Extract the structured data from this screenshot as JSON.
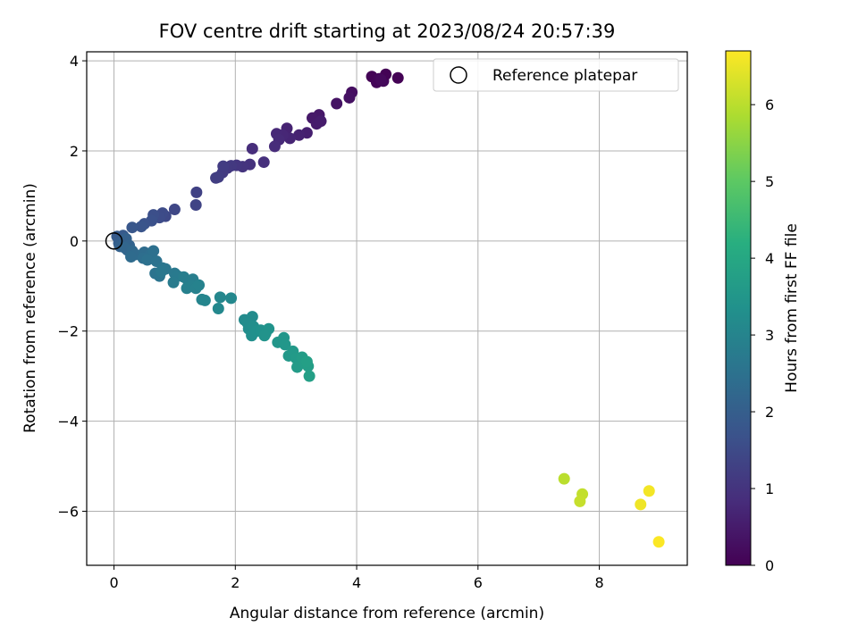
{
  "chart_data": {
    "type": "scatter",
    "title": "FOV centre drift starting at 2023/08/24 20:57:39",
    "xlabel": "Angular distance from reference (arcmin)",
    "ylabel": "Rotation from reference (arcmin)",
    "xlim": [
      -0.45,
      9.45
    ],
    "ylim": [
      -7.2,
      4.2
    ],
    "x_ticks": [
      0,
      2,
      4,
      6,
      8
    ],
    "y_ticks": [
      -6,
      -4,
      -2,
      0,
      2,
      4
    ],
    "x_tick_labels": [
      "0",
      "2",
      "4",
      "6",
      "8"
    ],
    "y_tick_labels": [
      "−6",
      "−4",
      "−2",
      "0",
      "2",
      "4"
    ],
    "grid": true,
    "legend": {
      "placement": "top-right",
      "entries": [
        "Reference platepar"
      ]
    },
    "reference_point": {
      "x": 0,
      "y": 0,
      "label": "Reference platepar"
    },
    "colorbar": {
      "label": "Hours from first FF file",
      "range": [
        0,
        6.7
      ],
      "ticks": [
        0,
        1,
        2,
        3,
        4,
        5,
        6
      ],
      "tick_labels": [
        "0",
        "1",
        "2",
        "3",
        "4",
        "5",
        "6"
      ],
      "colormap": "viridis"
    },
    "points": [
      {
        "x": 4.25,
        "y": 3.65,
        "t": 0.05
      },
      {
        "x": 4.33,
        "y": 3.52,
        "t": 0.08
      },
      {
        "x": 4.37,
        "y": 3.6,
        "t": 0.1
      },
      {
        "x": 4.44,
        "y": 3.55,
        "t": 0.12
      },
      {
        "x": 4.48,
        "y": 3.7,
        "t": 0.03
      },
      {
        "x": 4.68,
        "y": 3.62,
        "t": 0.02
      },
      {
        "x": 4.4,
        "y": 3.58,
        "t": 0.15
      },
      {
        "x": 3.92,
        "y": 3.3,
        "t": 0.25
      },
      {
        "x": 3.88,
        "y": 3.18,
        "t": 0.3
      },
      {
        "x": 3.67,
        "y": 3.05,
        "t": 0.35
      },
      {
        "x": 3.38,
        "y": 2.8,
        "t": 0.42
      },
      {
        "x": 3.27,
        "y": 2.73,
        "t": 0.45
      },
      {
        "x": 3.34,
        "y": 2.6,
        "t": 0.5
      },
      {
        "x": 3.41,
        "y": 2.66,
        "t": 0.52
      },
      {
        "x": 3.18,
        "y": 2.4,
        "t": 0.58
      },
      {
        "x": 3.05,
        "y": 2.35,
        "t": 0.62
      },
      {
        "x": 2.85,
        "y": 2.5,
        "t": 0.65
      },
      {
        "x": 2.9,
        "y": 2.28,
        "t": 0.68
      },
      {
        "x": 2.78,
        "y": 2.35,
        "t": 0.72
      },
      {
        "x": 2.68,
        "y": 2.38,
        "t": 0.75
      },
      {
        "x": 2.72,
        "y": 2.25,
        "t": 0.78
      },
      {
        "x": 2.65,
        "y": 2.1,
        "t": 0.82
      },
      {
        "x": 2.28,
        "y": 2.05,
        "t": 0.85
      },
      {
        "x": 2.47,
        "y": 1.75,
        "t": 0.9
      },
      {
        "x": 2.24,
        "y": 1.7,
        "t": 0.95
      },
      {
        "x": 2.12,
        "y": 1.65,
        "t": 1.0
      },
      {
        "x": 2.02,
        "y": 1.68,
        "t": 1.05
      },
      {
        "x": 1.93,
        "y": 1.67,
        "t": 1.1
      },
      {
        "x": 1.87,
        "y": 1.62,
        "t": 1.12
      },
      {
        "x": 1.79,
        "y": 1.52,
        "t": 1.15
      },
      {
        "x": 1.8,
        "y": 1.66,
        "t": 1.18
      },
      {
        "x": 1.72,
        "y": 1.42,
        "t": 1.2
      },
      {
        "x": 1.68,
        "y": 1.4,
        "t": 1.22
      },
      {
        "x": 1.36,
        "y": 1.08,
        "t": 1.3
      },
      {
        "x": 1.35,
        "y": 0.8,
        "t": 1.35
      },
      {
        "x": 1.0,
        "y": 0.7,
        "t": 1.42
      },
      {
        "x": 0.85,
        "y": 0.55,
        "t": 1.48
      },
      {
        "x": 0.8,
        "y": 0.62,
        "t": 1.52
      },
      {
        "x": 0.75,
        "y": 0.52,
        "t": 1.55
      },
      {
        "x": 0.65,
        "y": 0.58,
        "t": 1.6
      },
      {
        "x": 0.62,
        "y": 0.45,
        "t": 1.65
      },
      {
        "x": 0.5,
        "y": 0.38,
        "t": 1.7
      },
      {
        "x": 0.45,
        "y": 0.32,
        "t": 1.75
      },
      {
        "x": 0.3,
        "y": 0.3,
        "t": 1.8
      },
      {
        "x": 0.15,
        "y": 0.12,
        "t": 1.88
      },
      {
        "x": 0.05,
        "y": 0.1,
        "t": 1.92
      },
      {
        "x": 0.12,
        "y": 0.0,
        "t": 1.97
      },
      {
        "x": 0.08,
        "y": -0.05,
        "t": 2.0
      },
      {
        "x": 0.2,
        "y": 0.05,
        "t": 2.04
      },
      {
        "x": 0.1,
        "y": -0.12,
        "t": 2.08
      },
      {
        "x": 0.25,
        "y": -0.1,
        "t": 2.12
      },
      {
        "x": 0.22,
        "y": -0.2,
        "t": 2.18
      },
      {
        "x": 0.18,
        "y": -0.15,
        "t": 2.2
      },
      {
        "x": 0.3,
        "y": -0.22,
        "t": 2.25
      },
      {
        "x": 0.35,
        "y": -0.3,
        "t": 2.3
      },
      {
        "x": 0.28,
        "y": -0.35,
        "t": 2.32
      },
      {
        "x": 0.5,
        "y": -0.25,
        "t": 2.35
      },
      {
        "x": 0.48,
        "y": -0.38,
        "t": 2.4
      },
      {
        "x": 0.6,
        "y": -0.3,
        "t": 2.42
      },
      {
        "x": 0.65,
        "y": -0.22,
        "t": 2.45
      },
      {
        "x": 0.55,
        "y": -0.42,
        "t": 2.48
      },
      {
        "x": 0.7,
        "y": -0.45,
        "t": 2.5
      },
      {
        "x": 0.68,
        "y": -0.72,
        "t": 2.55
      },
      {
        "x": 0.75,
        "y": -0.78,
        "t": 2.58
      },
      {
        "x": 0.8,
        "y": -0.6,
        "t": 2.6
      },
      {
        "x": 0.85,
        "y": -0.62,
        "t": 2.62
      },
      {
        "x": 0.78,
        "y": -0.68,
        "t": 2.65
      },
      {
        "x": 1.0,
        "y": -0.72,
        "t": 2.7
      },
      {
        "x": 1.05,
        "y": -0.78,
        "t": 2.72
      },
      {
        "x": 0.98,
        "y": -0.92,
        "t": 2.75
      },
      {
        "x": 1.15,
        "y": -0.8,
        "t": 2.8
      },
      {
        "x": 1.22,
        "y": -0.88,
        "t": 2.82
      },
      {
        "x": 1.3,
        "y": -0.85,
        "t": 2.85
      },
      {
        "x": 1.2,
        "y": -1.05,
        "t": 2.88
      },
      {
        "x": 1.28,
        "y": -1.0,
        "t": 2.9
      },
      {
        "x": 1.35,
        "y": -1.05,
        "t": 2.92
      },
      {
        "x": 1.4,
        "y": -0.98,
        "t": 2.95
      },
      {
        "x": 1.45,
        "y": -1.3,
        "t": 3.0
      },
      {
        "x": 1.5,
        "y": -1.32,
        "t": 3.02
      },
      {
        "x": 1.75,
        "y": -1.25,
        "t": 3.08
      },
      {
        "x": 1.93,
        "y": -1.27,
        "t": 3.1
      },
      {
        "x": 1.72,
        "y": -1.5,
        "t": 3.12
      },
      {
        "x": 2.15,
        "y": -1.75,
        "t": 3.18
      },
      {
        "x": 2.28,
        "y": -1.68,
        "t": 3.2
      },
      {
        "x": 2.2,
        "y": -1.82,
        "t": 3.22
      },
      {
        "x": 2.22,
        "y": -1.95,
        "t": 3.25
      },
      {
        "x": 2.3,
        "y": -1.9,
        "t": 3.28
      },
      {
        "x": 2.27,
        "y": -2.1,
        "t": 3.3
      },
      {
        "x": 2.35,
        "y": -2.0,
        "t": 3.32
      },
      {
        "x": 2.42,
        "y": -1.98,
        "t": 3.35
      },
      {
        "x": 2.5,
        "y": -2.05,
        "t": 3.38
      },
      {
        "x": 2.55,
        "y": -1.95,
        "t": 3.4
      },
      {
        "x": 2.48,
        "y": -2.1,
        "t": 3.42
      },
      {
        "x": 2.7,
        "y": -2.25,
        "t": 3.48
      },
      {
        "x": 2.8,
        "y": -2.15,
        "t": 3.5
      },
      {
        "x": 2.82,
        "y": -2.3,
        "t": 3.52
      },
      {
        "x": 2.88,
        "y": -2.55,
        "t": 3.55
      },
      {
        "x": 2.95,
        "y": -2.45,
        "t": 3.58
      },
      {
        "x": 3.0,
        "y": -2.6,
        "t": 3.6
      },
      {
        "x": 3.05,
        "y": -2.68,
        "t": 3.62
      },
      {
        "x": 3.02,
        "y": -2.8,
        "t": 3.65
      },
      {
        "x": 3.1,
        "y": -2.58,
        "t": 3.68
      },
      {
        "x": 3.15,
        "y": -2.72,
        "t": 3.7
      },
      {
        "x": 3.2,
        "y": -2.78,
        "t": 3.72
      },
      {
        "x": 3.18,
        "y": -2.68,
        "t": 3.74
      },
      {
        "x": 3.22,
        "y": -3.0,
        "t": 3.76
      },
      {
        "x": 7.42,
        "y": -5.28,
        "t": 6.0
      },
      {
        "x": 7.72,
        "y": -5.62,
        "t": 6.08
      },
      {
        "x": 7.68,
        "y": -5.78,
        "t": 6.12
      },
      {
        "x": 8.68,
        "y": -5.85,
        "t": 6.55
      },
      {
        "x": 8.82,
        "y": -5.55,
        "t": 6.6
      },
      {
        "x": 8.98,
        "y": -6.68,
        "t": 6.68
      }
    ]
  }
}
